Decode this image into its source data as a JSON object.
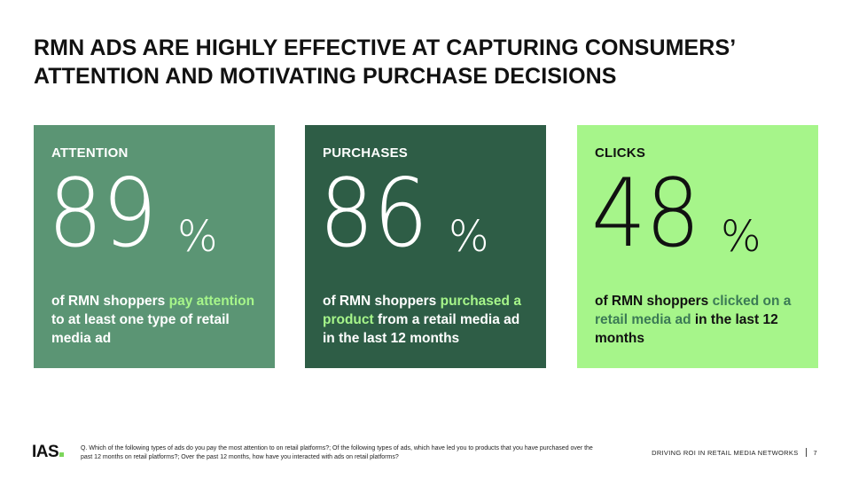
{
  "title": {
    "line1": "RMN ADS ARE HIGHLY EFFECTIVE AT CAPTURING CONSUMERS’",
    "line2": "ATTENTION AND MOTIVATING PURCHASE DECISIONS"
  },
  "cards": [
    {
      "label": "ATTENTION",
      "number": "89",
      "percent": "%",
      "desc": [
        {
          "text": "of RMN shoppers ",
          "highlight": false
        },
        {
          "text": "pay attention",
          "highlight": true
        },
        {
          "text": " to at least one type of retail media ad",
          "highlight": false
        }
      ],
      "background": "#5b9574"
    },
    {
      "label": "PURCHASES",
      "number": "86",
      "percent": "%",
      "desc": [
        {
          "text": "of RMN shoppers ",
          "highlight": false
        },
        {
          "text": "purchased a product",
          "highlight": true
        },
        {
          "text": " from a retail media ad in the last 12 months",
          "highlight": false
        }
      ],
      "background": "#2e5d46"
    },
    {
      "label": "CLICKS",
      "number": "48",
      "percent": "%",
      "desc": [
        {
          "text": "of RMN shoppers ",
          "highlight": false
        },
        {
          "text": "clicked on a retail media ad",
          "highlight": true
        },
        {
          "text": " in the last 12 months",
          "highlight": false
        }
      ],
      "background": "#a6f58a"
    }
  ],
  "footer": {
    "logo": "IAS",
    "footnote": "Q. Which of the following types of ads do you pay the most attention to on retail platforms?; Of the following types of ads, which have led you to products that you have purchased over the past 12 months on retail platforms?; Over the past 12 months, how have you interacted with ads on retail platforms?",
    "section": "DRIVING ROI IN RETAIL MEDIA NETWORKS",
    "page_number": "7"
  },
  "colors": {
    "highlight_light": "#a6f58a",
    "highlight_dark": "#3b7a55",
    "logo_accent": "#7cd65b"
  }
}
